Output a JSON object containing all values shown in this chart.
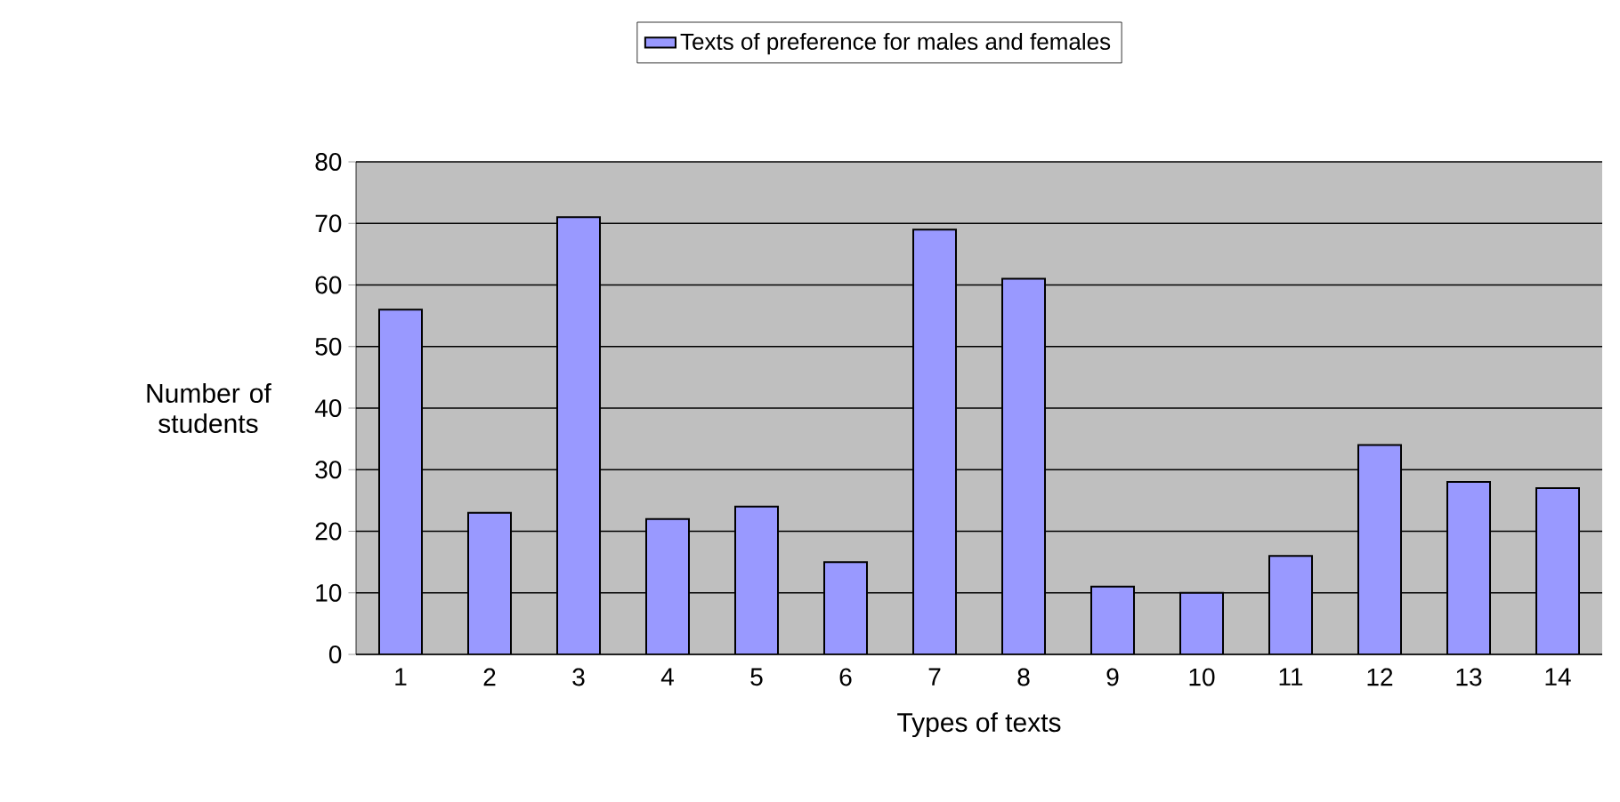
{
  "chart_data": {
    "type": "bar",
    "xlabel": "Types of texts",
    "ylabel": "Number of students",
    "categories": [
      "1",
      "2",
      "3",
      "4",
      "5",
      "6",
      "7",
      "8",
      "9",
      "10",
      "11",
      "12",
      "13",
      "14"
    ],
    "series": [
      {
        "name": "Texts of preference for males and females",
        "color": "#9999ff",
        "values": [
          56,
          23,
          71,
          22,
          24,
          15,
          69,
          61,
          11,
          10,
          16,
          34,
          28,
          27
        ]
      }
    ],
    "ylim": [
      0,
      80
    ],
    "yticks": [
      0,
      10,
      20,
      30,
      40,
      50,
      60,
      70,
      80
    ],
    "grid": "y",
    "legend": "top"
  }
}
